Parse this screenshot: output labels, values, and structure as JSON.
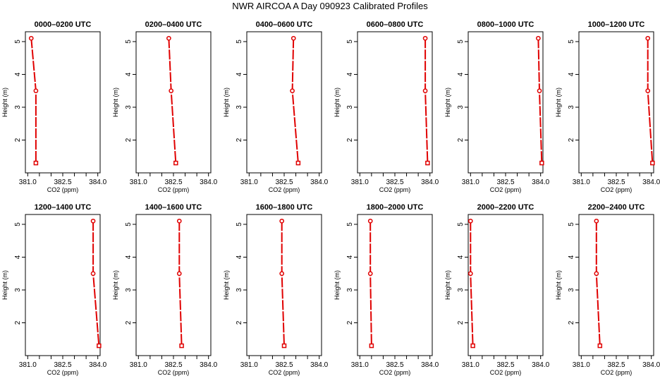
{
  "page": {
    "title": "NWR AIRCOA A  Day 090923  Calibrated Profiles"
  },
  "style": {
    "series_color": "#e00000",
    "axis_color": "#000000"
  },
  "chart_data": [
    {
      "type": "line",
      "title": "0000–0200 UTC",
      "xlabel": "CO2 (ppm)",
      "ylabel": "Height (m)",
      "xlim": [
        380.9,
        384.1
      ],
      "ylim": [
        1.0,
        5.3
      ],
      "x": [
        381.15,
        381.35,
        381.35
      ],
      "y": [
        5.1,
        3.5,
        1.3
      ]
    },
    {
      "type": "line",
      "title": "0200–0400 UTC",
      "xlabel": "CO2 (ppm)",
      "ylabel": "Height (m)",
      "xlim": [
        380.9,
        384.1
      ],
      "ylim": [
        1.0,
        5.3
      ],
      "x": [
        382.3,
        382.4,
        382.6
      ],
      "y": [
        5.1,
        3.5,
        1.3
      ]
    },
    {
      "type": "line",
      "title": "0400–0600 UTC",
      "xlabel": "CO2 (ppm)",
      "ylabel": "Height (m)",
      "xlim": [
        380.9,
        384.1
      ],
      "ylim": [
        1.0,
        5.3
      ],
      "x": [
        382.9,
        382.85,
        383.1
      ],
      "y": [
        5.1,
        3.5,
        1.3
      ]
    },
    {
      "type": "line",
      "title": "0600–0800 UTC",
      "xlabel": "CO2 (ppm)",
      "ylabel": "Height (m)",
      "xlim": [
        380.9,
        384.1
      ],
      "ylim": [
        1.0,
        5.3
      ],
      "x": [
        383.8,
        383.8,
        383.9
      ],
      "y": [
        5.1,
        3.5,
        1.3
      ]
    },
    {
      "type": "line",
      "title": "0800–1000 UTC",
      "xlabel": "CO2 (ppm)",
      "ylabel": "Height (m)",
      "xlim": [
        380.9,
        384.1
      ],
      "ylim": [
        1.0,
        5.3
      ],
      "x": [
        383.9,
        383.95,
        384.05
      ],
      "y": [
        5.1,
        3.5,
        1.3
      ]
    },
    {
      "type": "line",
      "title": "1000–1200 UTC",
      "xlabel": "CO2 (ppm)",
      "ylabel": "Height (m)",
      "xlim": [
        380.9,
        384.1
      ],
      "ylim": [
        1.0,
        5.3
      ],
      "x": [
        383.85,
        383.85,
        384.05
      ],
      "y": [
        5.1,
        3.5,
        1.3
      ]
    },
    {
      "type": "line",
      "title": "1200–1400 UTC",
      "xlabel": "CO2 (ppm)",
      "ylabel": "Height (m)",
      "xlim": [
        380.9,
        384.1
      ],
      "ylim": [
        1.0,
        5.3
      ],
      "x": [
        383.8,
        383.8,
        384.05
      ],
      "y": [
        5.1,
        3.5,
        1.3
      ]
    },
    {
      "type": "line",
      "title": "1400–1600 UTC",
      "xlabel": "CO2 (ppm)",
      "ylabel": "Height (m)",
      "xlim": [
        380.9,
        384.1
      ],
      "ylim": [
        1.0,
        5.3
      ],
      "x": [
        382.75,
        382.75,
        382.85
      ],
      "y": [
        5.1,
        3.5,
        1.3
      ]
    },
    {
      "type": "line",
      "title": "1600–1800 UTC",
      "xlabel": "CO2 (ppm)",
      "ylabel": "Height (m)",
      "xlim": [
        380.9,
        384.1
      ],
      "ylim": [
        1.0,
        5.3
      ],
      "x": [
        382.4,
        382.4,
        382.5
      ],
      "y": [
        5.1,
        3.5,
        1.3
      ]
    },
    {
      "type": "line",
      "title": "1800–2000 UTC",
      "xlabel": "CO2 (ppm)",
      "ylabel": "Height (m)",
      "xlim": [
        380.9,
        384.1
      ],
      "ylim": [
        1.0,
        5.3
      ],
      "x": [
        381.45,
        381.45,
        381.5
      ],
      "y": [
        5.1,
        3.5,
        1.3
      ]
    },
    {
      "type": "line",
      "title": "2000–2200 UTC",
      "xlabel": "CO2 (ppm)",
      "ylabel": "Height (m)",
      "xlim": [
        380.9,
        384.1
      ],
      "ylim": [
        1.0,
        5.3
      ],
      "x": [
        381.0,
        381.0,
        381.1
      ],
      "y": [
        5.1,
        3.5,
        1.3
      ]
    },
    {
      "type": "line",
      "title": "2200–2400 UTC",
      "xlabel": "CO2 (ppm)",
      "ylabel": "Height (m)",
      "xlim": [
        380.9,
        384.1
      ],
      "ylim": [
        1.0,
        5.3
      ],
      "x": [
        381.65,
        381.65,
        381.8
      ],
      "y": [
        5.1,
        3.5,
        1.3
      ]
    }
  ],
  "axes": {
    "x_ticks": [
      381.0,
      381.5,
      382.0,
      382.5,
      383.0,
      383.5,
      384.0
    ],
    "x_tick_labels": [
      "381.0",
      "382.5",
      "384.0"
    ],
    "x_tick_label_values": [
      381.0,
      382.5,
      384.0
    ],
    "y_ticks": [
      2,
      3,
      4,
      5
    ],
    "y_tick_labels": [
      "2",
      "3",
      "4",
      "5"
    ]
  }
}
